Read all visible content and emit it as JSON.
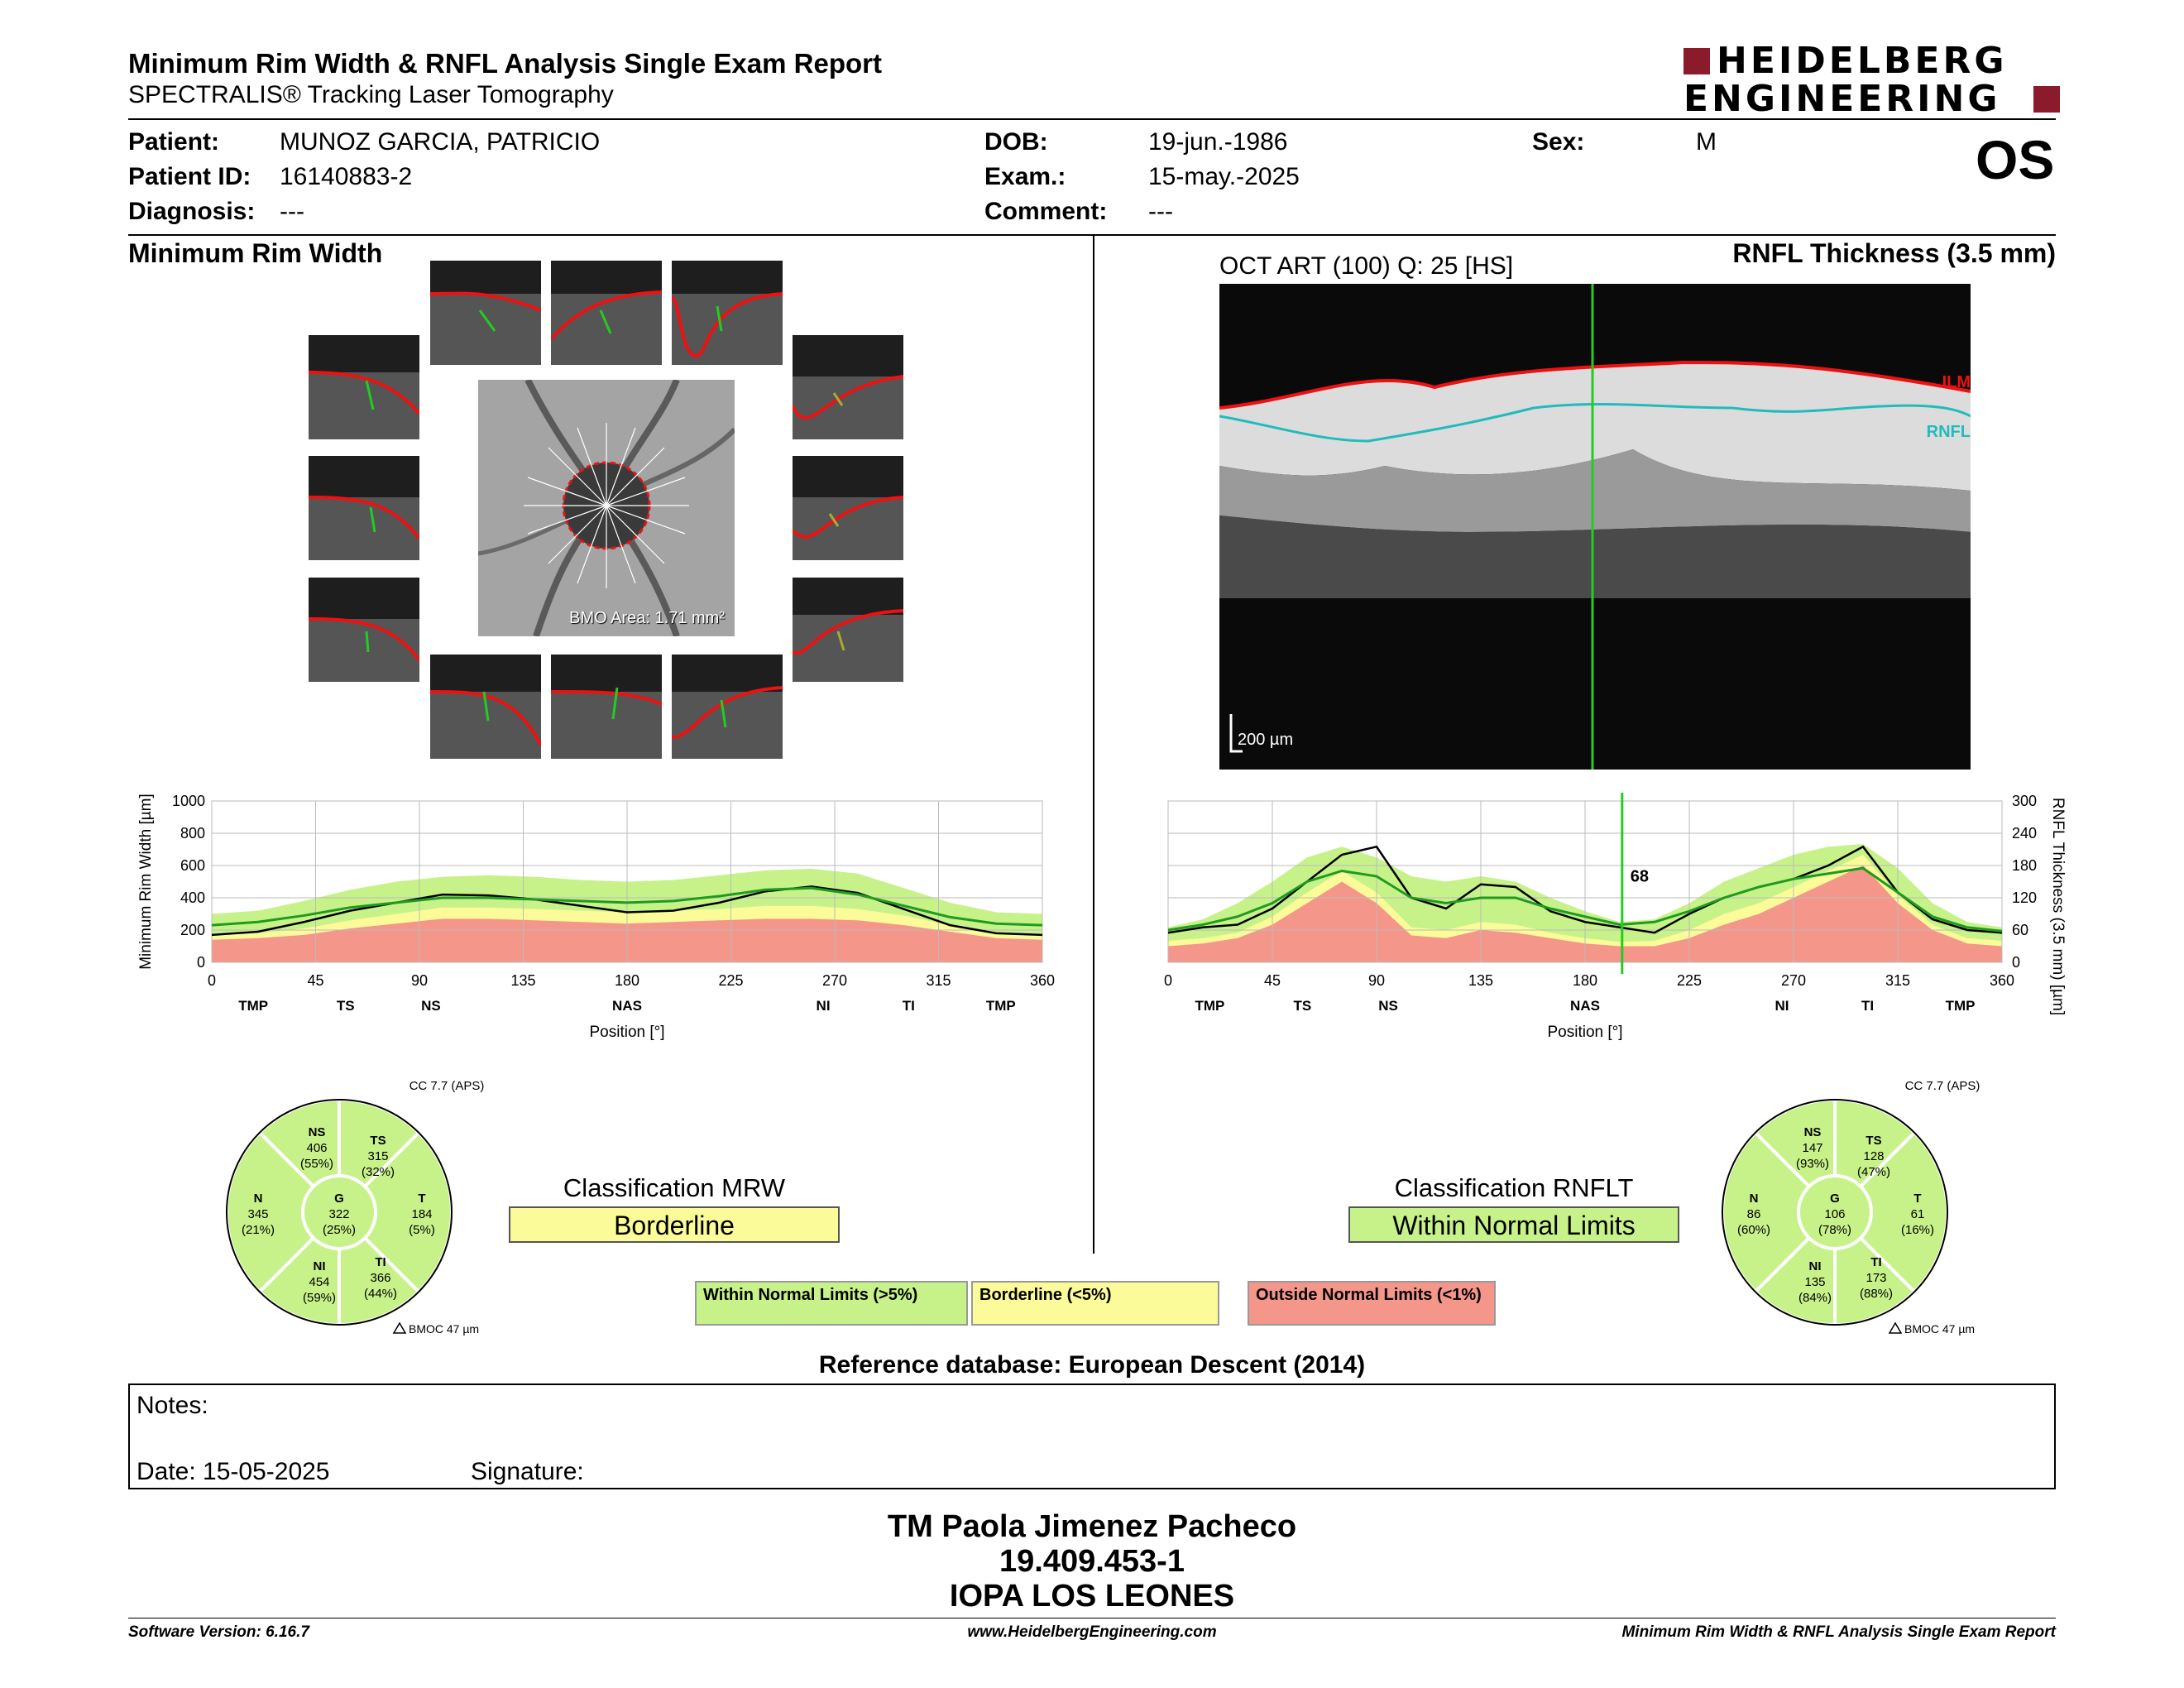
{
  "header": {
    "title": "Minimum Rim Width & RNFL Analysis Single Exam Report",
    "subtitle": "SPECTRALIS® Tracking Laser Tomography",
    "logo_line1": "HEIDELBERG",
    "logo_line2": "ENGINEERING",
    "eye": "OS"
  },
  "patient": {
    "patient_label": "Patient:",
    "patient_value": "MUNOZ GARCIA, PATRICIO",
    "id_label": "Patient ID:",
    "id_value": "16140883-2",
    "diag_label": "Diagnosis:",
    "diag_value": "---",
    "dob_label": "DOB:",
    "dob_value": "19-jun.-1986",
    "exam_label": "Exam.:",
    "exam_value": "15-may.-2025",
    "comment_label": "Comment:",
    "comment_value": "---",
    "sex_label": "Sex:",
    "sex_value": "M"
  },
  "mrw": {
    "section_title": "Minimum Rim Width",
    "bmo_area": "BMO Area: 1.71 mm²",
    "cc": "CC 7.7 (APS)",
    "bmoc": "BMOC 47 µm",
    "classification_title": "Classification MRW",
    "classification_value": "Borderline",
    "sectors": {
      "NS": {
        "label": "NS",
        "value": "406",
        "pct": "(55%)"
      },
      "TS": {
        "label": "TS",
        "value": "315",
        "pct": "(32%)"
      },
      "T": {
        "label": "T",
        "value": "184",
        "pct": "(5%)"
      },
      "TI": {
        "label": "TI",
        "value": "366",
        "pct": "(44%)"
      },
      "NI": {
        "label": "NI",
        "value": "454",
        "pct": "(59%)"
      },
      "N": {
        "label": "N",
        "value": "345",
        "pct": "(21%)"
      },
      "G": {
        "label": "G",
        "value": "322",
        "pct": "(25%)"
      }
    }
  },
  "rnfl": {
    "section_title": "RNFL Thickness (3.5 mm)",
    "oct_label": "OCT ART (100) Q: 25 [HS]",
    "ilm": "ILM",
    "rnfl_tag": "RNFL",
    "scale": "200 µm",
    "cursor_value": "68",
    "cc": "CC 7.7 (APS)",
    "bmoc": "BMOC 47 µm",
    "classification_title": "Classification RNFLT",
    "classification_value": "Within Normal Limits",
    "sectors": {
      "NS": {
        "label": "NS",
        "value": "147",
        "pct": "(93%)"
      },
      "TS": {
        "label": "TS",
        "value": "128",
        "pct": "(47%)"
      },
      "T": {
        "label": "T",
        "value": "61",
        "pct": "(16%)"
      },
      "TI": {
        "label": "TI",
        "value": "173",
        "pct": "(88%)"
      },
      "NI": {
        "label": "NI",
        "value": "135",
        "pct": "(84%)"
      },
      "N": {
        "label": "N",
        "value": "86",
        "pct": "(60%)"
      },
      "G": {
        "label": "G",
        "value": "106",
        "pct": "(78%)"
      }
    }
  },
  "legend": {
    "wnl": "Within Normal Limits (>5%)",
    "bl": "Borderline (<5%)",
    "onl": "Outside Normal Limits (<1%)"
  },
  "reference": "Reference database: European Descent (2014)",
  "notes": {
    "notes_label": "Notes:",
    "date_label": "Date: 15-05-2025",
    "signature_label": "Signature:"
  },
  "signer": {
    "name": "TM Paola Jimenez Pacheco",
    "rut": "19.409.453-1",
    "org": "IOPA LOS LEONES"
  },
  "footer": {
    "software": "Software Version: 6.16.7",
    "website": "www.HeidelbergEngineering.com",
    "report": "Minimum Rim Width & RNFL Analysis Single Exam Report"
  },
  "colors": {
    "green": "#c7f28a",
    "yellow": "#fbfb9a",
    "red": "#f5968a",
    "brand": "#8b1a2b"
  },
  "chart_data": [
    {
      "type": "line",
      "ylabel": "Minimum Rim Width [µm]",
      "xlabel": "Position [°]",
      "xlim": [
        0,
        360
      ],
      "ylim": [
        0,
        1000
      ],
      "xticks": [
        "0",
        "45",
        "90",
        "135",
        "180",
        "225",
        "270",
        "315",
        "360"
      ],
      "yticks": [
        "0",
        "200",
        "400",
        "600",
        "800",
        "1000"
      ],
      "sector_labels": [
        "TMP",
        "TS",
        "NS",
        "NAS",
        "NI",
        "TI",
        "TMP"
      ],
      "x": [
        0,
        20,
        40,
        60,
        80,
        100,
        120,
        140,
        160,
        180,
        200,
        220,
        240,
        260,
        280,
        300,
        320,
        340,
        360
      ],
      "series": [
        {
          "values": [
            170,
            190,
            250,
            320,
            370,
            420,
            415,
            390,
            350,
            310,
            320,
            370,
            440,
            470,
            430,
            330,
            230,
            180,
            170
          ]
        },
        {
          "values": [
            230,
            250,
            290,
            340,
            370,
            400,
            400,
            390,
            380,
            370,
            380,
            410,
            450,
            460,
            420,
            350,
            280,
            240,
            230
          ]
        }
      ],
      "bands": {
        "red_top": [
          140,
          150,
          170,
          210,
          240,
          270,
          270,
          260,
          250,
          240,
          250,
          260,
          270,
          270,
          260,
          230,
          190,
          150,
          140
        ],
        "yellow_top": [
          170,
          180,
          210,
          260,
          300,
          340,
          340,
          330,
          320,
          310,
          320,
          330,
          350,
          350,
          330,
          290,
          230,
          180,
          170
        ],
        "green_top": [
          300,
          320,
          380,
          450,
          500,
          530,
          540,
          530,
          510,
          500,
          510,
          540,
          570,
          580,
          550,
          460,
          370,
          310,
          300
        ]
      }
    },
    {
      "type": "line",
      "ylabel": "RNFL Thickness (3.5 mm) [µm]",
      "xlabel": "Position [°]",
      "xlim": [
        0,
        360
      ],
      "ylim": [
        0,
        300
      ],
      "xticks": [
        "0",
        "45",
        "90",
        "135",
        "180",
        "225",
        "270",
        "315",
        "360"
      ],
      "yticks": [
        "0",
        "60",
        "120",
        "180",
        "240",
        "300"
      ],
      "sector_labels": [
        "TMP",
        "TS",
        "NS",
        "NAS",
        "NI",
        "TI",
        "TMP"
      ],
      "cursor_x": 196,
      "x": [
        0,
        15,
        30,
        45,
        60,
        75,
        90,
        105,
        120,
        135,
        150,
        165,
        180,
        195,
        210,
        225,
        240,
        255,
        270,
        285,
        300,
        315,
        330,
        345,
        360
      ],
      "series": [
        {
          "values": [
            55,
            65,
            70,
            100,
            150,
            200,
            215,
            120,
            100,
            145,
            140,
            95,
            75,
            65,
            55,
            90,
            120,
            140,
            155,
            180,
            215,
            130,
            80,
            60,
            55
          ]
        },
        {
          "values": [
            60,
            70,
            85,
            110,
            150,
            170,
            160,
            120,
            110,
            120,
            120,
            100,
            85,
            70,
            75,
            95,
            120,
            140,
            155,
            165,
            175,
            130,
            85,
            65,
            58
          ]
        }
      ],
      "bands": {
        "red_top": [
          30,
          35,
          45,
          70,
          110,
          150,
          110,
          50,
          45,
          60,
          55,
          45,
          35,
          30,
          30,
          45,
          70,
          90,
          120,
          150,
          180,
          110,
          60,
          35,
          30
        ],
        "yellow_top": [
          40,
          45,
          55,
          85,
          130,
          170,
          130,
          65,
          60,
          75,
          70,
          55,
          45,
          38,
          40,
          60,
          90,
          110,
          140,
          170,
          200,
          125,
          70,
          45,
          40
        ],
        "green_top": [
          65,
          80,
          110,
          150,
          195,
          215,
          195,
          160,
          150,
          160,
          150,
          120,
          95,
          75,
          80,
          110,
          150,
          175,
          200,
          215,
          220,
          175,
          110,
          75,
          65
        ]
      }
    }
  ]
}
